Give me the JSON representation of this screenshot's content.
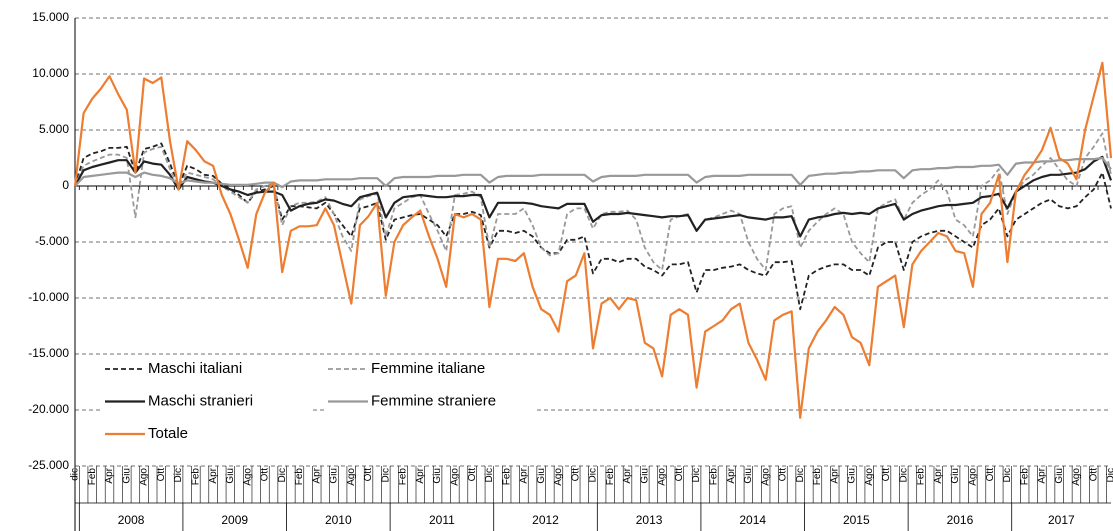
{
  "chart_data": {
    "type": "line",
    "categories": [
      "dic",
      null,
      "Feb",
      null,
      "Apr",
      null,
      "Giu",
      null,
      "Ago",
      null,
      "Ott",
      null,
      "Dic",
      null,
      "Feb",
      null,
      "Apr",
      null,
      "Giu",
      null,
      "Ago",
      null,
      "Ott",
      null,
      "Dic",
      null,
      "Feb",
      null,
      "Apr",
      null,
      "Giu",
      null,
      "Ago",
      null,
      "Ott",
      null,
      "Dic",
      null,
      "Feb",
      null,
      "Apr",
      null,
      "Giu",
      null,
      "Ago",
      null,
      "Ott",
      null,
      "Dic",
      null,
      "Feb",
      null,
      "Apr",
      null,
      "Giu",
      null,
      "Ago",
      null,
      "Ott",
      null,
      "Dic",
      null,
      "Feb",
      null,
      "Apr",
      null,
      "Giu",
      null,
      "Ago",
      null,
      "Ott",
      null,
      "Dic",
      null,
      "Feb",
      null,
      "Apr",
      null,
      "Giu",
      null,
      "Ago",
      null,
      "Ott",
      null,
      "Dic",
      null,
      "Feb",
      null,
      "Apr",
      null,
      "Giu",
      null,
      "Ago",
      null,
      "Ott",
      null,
      "Dic",
      null,
      "Feb",
      null,
      "Apr",
      null,
      "Giu",
      null,
      "Ago",
      null,
      "Ott",
      null,
      "Dic",
      null,
      "Feb",
      null,
      "Apr",
      null,
      "Giu",
      null,
      "Ago",
      null,
      "Ott",
      null,
      "Dic"
    ],
    "years": [
      "2008",
      "2009",
      "2010",
      "2011",
      "2012",
      "2013",
      "2014",
      "2015",
      "2016",
      "2017"
    ],
    "ylim": [
      -25000,
      15000
    ],
    "yticks": [
      {
        "value": -25000,
        "label": "-25.000"
      },
      {
        "value": -20000,
        "label": "-20.000"
      },
      {
        "value": -15000,
        "label": "-15.000"
      },
      {
        "value": -10000,
        "label": "-10.000"
      },
      {
        "value": -5000,
        "label": "-5.000"
      },
      0,
      {
        "value": 5000,
        "label": "5.000"
      },
      {
        "value": 10000,
        "label": "10.000"
      },
      {
        "value": 15000,
        "label": "15.000"
      }
    ],
    "grid": true,
    "legend": "lower left",
    "series": [
      {
        "name": "Maschi italiani",
        "color": "#222222",
        "dash": "dashed",
        "width": 1.8,
        "values": [
          0,
          2500,
          2900,
          3100,
          3400,
          3400,
          3500,
          1200,
          3300,
          3500,
          3800,
          2000,
          0,
          1800,
          1500,
          1000,
          900,
          200,
          -300,
          -800,
          -1500,
          -500,
          -300,
          0,
          -3000,
          -1800,
          -1800,
          -1900,
          -2000,
          -1500,
          -2500,
          -3500,
          -4500,
          -2000,
          -1800,
          -1500,
          -4800,
          -3000,
          -2800,
          -2600,
          -2500,
          -3000,
          -3500,
          -4500,
          -2500,
          -2500,
          -2300,
          -2600,
          -5500,
          -4000,
          -4000,
          -4200,
          -4000,
          -4500,
          -5500,
          -6000,
          -6000,
          -4800,
          -4800,
          -4500,
          -7800,
          -6500,
          -6500,
          -6800,
          -6500,
          -6500,
          -7200,
          -7500,
          -8000,
          -7000,
          -7000,
          -6800,
          -9500,
          -7500,
          -7500,
          -7300,
          -7200,
          -7000,
          -7500,
          -7800,
          -8000,
          -6800,
          -6800,
          -6700,
          -11000,
          -8000,
          -7500,
          -7200,
          -7000,
          -7000,
          -7500,
          -7500,
          -8000,
          -5500,
          -5000,
          -5000,
          -7500,
          -5000,
          -4500,
          -4200,
          -4000,
          -4000,
          -4500,
          -5000,
          -5500,
          -3500,
          -3000,
          -2000,
          -4500,
          -3000,
          -2500,
          -2000,
          -1500,
          -1200,
          -1800,
          -2000,
          -1800,
          -1000,
          -300,
          1200,
          -2000
        ]
      },
      {
        "name": "Femmine italiane",
        "color": "#999999",
        "dash": "dashed",
        "width": 1.8,
        "values": [
          0,
          1800,
          2200,
          2500,
          2800,
          2800,
          2500,
          -2800,
          3000,
          3300,
          3500,
          1500,
          0,
          1200,
          1000,
          800,
          600,
          0,
          -500,
          -1000,
          -1500,
          -300,
          0,
          200,
          -3500,
          -1800,
          -1500,
          -1500,
          -1400,
          -1000,
          -2500,
          -4500,
          -5800,
          -1200,
          -900,
          -700,
          -4500,
          -2000,
          -1500,
          -1000,
          -800,
          -2500,
          -4000,
          -5800,
          -800,
          -700,
          -500,
          -1000,
          -5500,
          -2500,
          -2500,
          -2500,
          -2000,
          -3500,
          -5500,
          -6200,
          -6000,
          -2500,
          -2000,
          -2000,
          -3800,
          -2500,
          -2300,
          -2300,
          -2200,
          -3000,
          -5500,
          -6800,
          -7500,
          -3000,
          -2700,
          -2500,
          -4000,
          -3000,
          -2800,
          -2500,
          -2200,
          -2500,
          -5000,
          -6500,
          -7500,
          -2500,
          -2000,
          -1800,
          -5500,
          -4000,
          -3200,
          -2500,
          -2000,
          -2500,
          -5000,
          -6000,
          -6800,
          -2000,
          -1500,
          -1200,
          -3000,
          -1500,
          -800,
          -300,
          500,
          -500,
          -3000,
          -3500,
          -4500,
          0,
          500,
          1500,
          -2500,
          -500,
          500,
          1000,
          1800,
          2500,
          1500,
          500,
          0,
          2500,
          3500,
          4700,
          1000
        ]
      },
      {
        "name": "Maschi stranieri",
        "color": "#222222",
        "dash": "solid",
        "width": 2.2,
        "values": [
          0,
          1400,
          1700,
          1900,
          2100,
          2300,
          2300,
          1200,
          2200,
          2000,
          1900,
          1000,
          -300,
          800,
          600,
          400,
          300,
          0,
          -300,
          -500,
          -800,
          -600,
          -500,
          -500,
          -800,
          -2200,
          -1800,
          -1600,
          -1500,
          -1200,
          -1300,
          -1600,
          -1800,
          -1000,
          -800,
          -600,
          -2800,
          -1500,
          -1000,
          -900,
          -800,
          -900,
          -1000,
          -1000,
          -900,
          -900,
          -800,
          -800,
          -2800,
          -1500,
          -1500,
          -1500,
          -1500,
          -1600,
          -1800,
          -1900,
          -2000,
          -1600,
          -1600,
          -1600,
          -3200,
          -2600,
          -2500,
          -2500,
          -2400,
          -2500,
          -2600,
          -2700,
          -2800,
          -2700,
          -2700,
          -2600,
          -4000,
          -3000,
          -2900,
          -2800,
          -2700,
          -2600,
          -2800,
          -2900,
          -3000,
          -2800,
          -2800,
          -2700,
          -4500,
          -3000,
          -2800,
          -2700,
          -2500,
          -2400,
          -2500,
          -2400,
          -2500,
          -2000,
          -1800,
          -1600,
          -3000,
          -2500,
          -2200,
          -2000,
          -1800,
          -1700,
          -1700,
          -1600,
          -1500,
          -1000,
          -900,
          -700,
          -2000,
          -500,
          0,
          500,
          800,
          1000,
          1000,
          1100,
          1200,
          1500,
          2200,
          2600,
          500
        ]
      },
      {
        "name": "Femmine straniere",
        "color": "#999999",
        "dash": "solid",
        "width": 2.2,
        "values": [
          0,
          800,
          900,
          1000,
          1100,
          1200,
          1200,
          800,
          1200,
          1000,
          900,
          700,
          200,
          500,
          400,
          300,
          300,
          200,
          100,
          100,
          100,
          200,
          300,
          300,
          -100,
          400,
          500,
          500,
          500,
          600,
          600,
          600,
          600,
          700,
          700,
          700,
          0,
          700,
          800,
          800,
          800,
          800,
          900,
          900,
          900,
          1000,
          1000,
          1000,
          300,
          800,
          900,
          900,
          900,
          900,
          1000,
          1000,
          1000,
          1000,
          1000,
          1000,
          400,
          800,
          900,
          900,
          900,
          900,
          1000,
          1000,
          1000,
          1000,
          1000,
          1000,
          300,
          800,
          900,
          900,
          900,
          900,
          1000,
          1000,
          1000,
          1000,
          1000,
          1000,
          100,
          900,
          1000,
          1100,
          1100,
          1200,
          1200,
          1300,
          1300,
          1400,
          1400,
          1400,
          700,
          1400,
          1500,
          1500,
          1600,
          1600,
          1700,
          1700,
          1700,
          1800,
          1800,
          1900,
          1000,
          2000,
          2100,
          2100,
          2200,
          2200,
          2300,
          2300,
          2400,
          2400,
          2400,
          2500,
          1500
        ]
      },
      {
        "name": "Totale",
        "color": "#ed7d31",
        "dash": "solid",
        "width": 2.2,
        "values": [
          0,
          6500,
          7800,
          8700,
          9800,
          8200,
          6800,
          1200,
          9600,
          9200,
          9700,
          4000,
          -300,
          4000,
          3200,
          2200,
          1800,
          -800,
          -2500,
          -4800,
          -7300,
          -2500,
          -600,
          300,
          -7700,
          -4000,
          -3600,
          -3600,
          -3500,
          -2000,
          -3500,
          -7000,
          -10500,
          -3500,
          -2700,
          -1500,
          -9800,
          -5000,
          -3500,
          -2800,
          -2200,
          -4500,
          -6500,
          -9000,
          -2500,
          -2800,
          -2500,
          -3000,
          -10800,
          -6500,
          -6500,
          -6700,
          -6000,
          -9000,
          -11000,
          -11500,
          -13000,
          -8500,
          -8000,
          -6000,
          -14500,
          -10500,
          -10000,
          -11000,
          -10000,
          -10200,
          -14000,
          -14500,
          -17000,
          -11500,
          -11000,
          -11500,
          -18000,
          -13000,
          -12500,
          -12000,
          -11000,
          -10500,
          -14000,
          -15500,
          -17300,
          -12000,
          -11500,
          -11200,
          -20700,
          -14500,
          -13000,
          -12000,
          -10800,
          -11500,
          -13500,
          -14000,
          -16000,
          -9000,
          -8500,
          -8000,
          -12600,
          -7000,
          -5800,
          -5000,
          -4200,
          -4500,
          -5800,
          -6000,
          -9000,
          -2500,
          -1500,
          1000,
          -6800,
          -500,
          1000,
          2000,
          3200,
          5200,
          2500,
          2000,
          600,
          5000,
          8000,
          11000,
          2500
        ]
      }
    ]
  }
}
